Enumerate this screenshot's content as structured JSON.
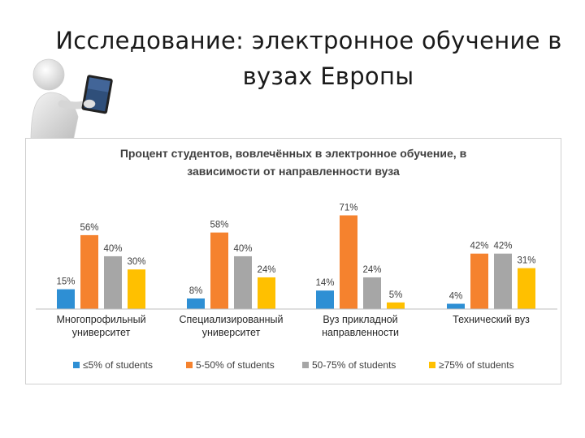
{
  "slide": {
    "title_line1": "Исследование: электронное обучение в",
    "title_line2": "вузах Европы",
    "illustration_icon": "person-with-tablet-icon"
  },
  "colors": {
    "series": [
      "#2e8fd4",
      "#f5822e",
      "#a6a6a6",
      "#ffc000"
    ],
    "axis": "#bfbfbf",
    "frame": "#d0d0d0"
  },
  "chart_data": {
    "type": "bar",
    "title_lines": [
      "Процент студентов, вовлечённых в электронное обучение, в",
      "зависимости от направленности вуза"
    ],
    "categories": [
      [
        "Многопрофильный",
        "университет"
      ],
      [
        "Специализированный",
        "университет"
      ],
      [
        "Вуз прикладной",
        "направленности"
      ],
      [
        "Технический вуз"
      ]
    ],
    "series": [
      {
        "name": "≤5% of students",
        "values": [
          15,
          8,
          14,
          4
        ],
        "labels": [
          "15%",
          "8%",
          "14%",
          "4%"
        ]
      },
      {
        "name": "5-50% of students",
        "values": [
          56,
          58,
          71,
          42
        ],
        "labels": [
          "56%",
          "58%",
          "71%",
          "42%"
        ]
      },
      {
        "name": "50-75% of students",
        "values": [
          40,
          40,
          24,
          42
        ],
        "labels": [
          "40%",
          "40%",
          "24%",
          "42%"
        ]
      },
      {
        "name": "≥75% of students",
        "values": [
          30,
          24,
          5,
          31
        ],
        "labels": [
          "30%",
          "24%",
          "5%",
          "31%"
        ]
      }
    ],
    "ylim": [
      0,
      75
    ],
    "grid": false,
    "legend_position": "bottom"
  }
}
